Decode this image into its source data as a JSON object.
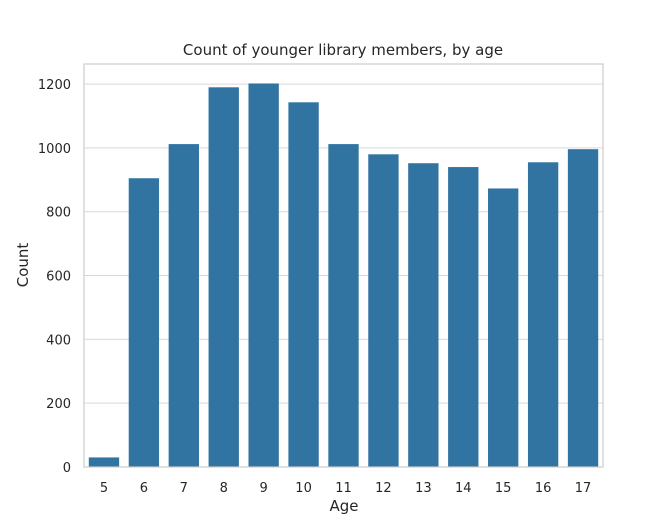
{
  "chart_data": {
    "type": "bar",
    "title": "Count of younger library members, by age",
    "xlabel": "Age",
    "ylabel": "Count",
    "categories": [
      "5",
      "6",
      "7",
      "8",
      "9",
      "10",
      "11",
      "12",
      "13",
      "14",
      "15",
      "16",
      "17"
    ],
    "values": [
      30,
      905,
      1012,
      1190,
      1202,
      1143,
      1012,
      980,
      952,
      940,
      873,
      955,
      996
    ],
    "ylim": [
      0,
      1263
    ],
    "yticks": [
      0,
      200,
      400,
      600,
      800,
      1000,
      1200
    ],
    "ytick_labels": [
      "0",
      "200",
      "400",
      "600",
      "800",
      "1000",
      "1200"
    ],
    "grid": "y",
    "legend": "none",
    "bar_color": "#3274a1",
    "grid_color": "#d9d9d9",
    "frame_color": "#cccccc",
    "text_color": "#262626"
  }
}
